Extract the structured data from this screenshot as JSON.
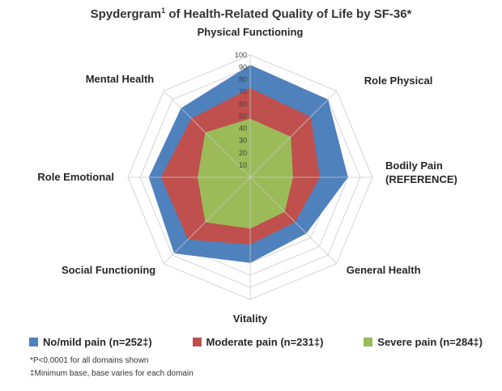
{
  "chart_data": {
    "type": "radar",
    "title": "Spydergram",
    "title_superscript": "1",
    "title_rest": " of Health-Related Quality of Life by SF-36*",
    "categories": [
      "Physical Functioning",
      "Role Physical",
      "Bodily Pain (REFERENCE)",
      "General Health",
      "Vitality",
      "Social Functioning",
      "Role Emotional",
      "Mental Health"
    ],
    "category_lines": [
      [
        "Physical Functioning"
      ],
      [
        "Role Physical"
      ],
      [
        "Bodily Pain",
        "(REFERENCE)"
      ],
      [
        "General Health"
      ],
      [
        "Vitality"
      ],
      [
        "Social Functioning"
      ],
      [
        "Role Emotional"
      ],
      [
        "Mental Health"
      ]
    ],
    "rlim": [
      0,
      100
    ],
    "ticks": [
      10,
      20,
      30,
      40,
      50,
      60,
      70,
      80,
      90,
      100
    ],
    "grid": true,
    "legend_position": "bottom",
    "series": [
      {
        "name": "No/mild pain (n=252‡)",
        "color": "#4F81BD",
        "values": [
          92,
          90,
          80,
          65,
          70,
          88,
          83,
          80
        ]
      },
      {
        "name": "Moderate pain (n=231‡)",
        "color": "#C0504D",
        "values": [
          73,
          70,
          57,
          52,
          55,
          72,
          73,
          68
        ]
      },
      {
        "name": "Severe pain (n=284‡)",
        "color": "#9BBB59",
        "values": [
          48,
          47,
          35,
          40,
          42,
          52,
          43,
          52
        ]
      }
    ]
  },
  "footnotes": [
    "*P<0.0001 for all domains shown",
    "‡Minimum base, base varies for each domain"
  ]
}
